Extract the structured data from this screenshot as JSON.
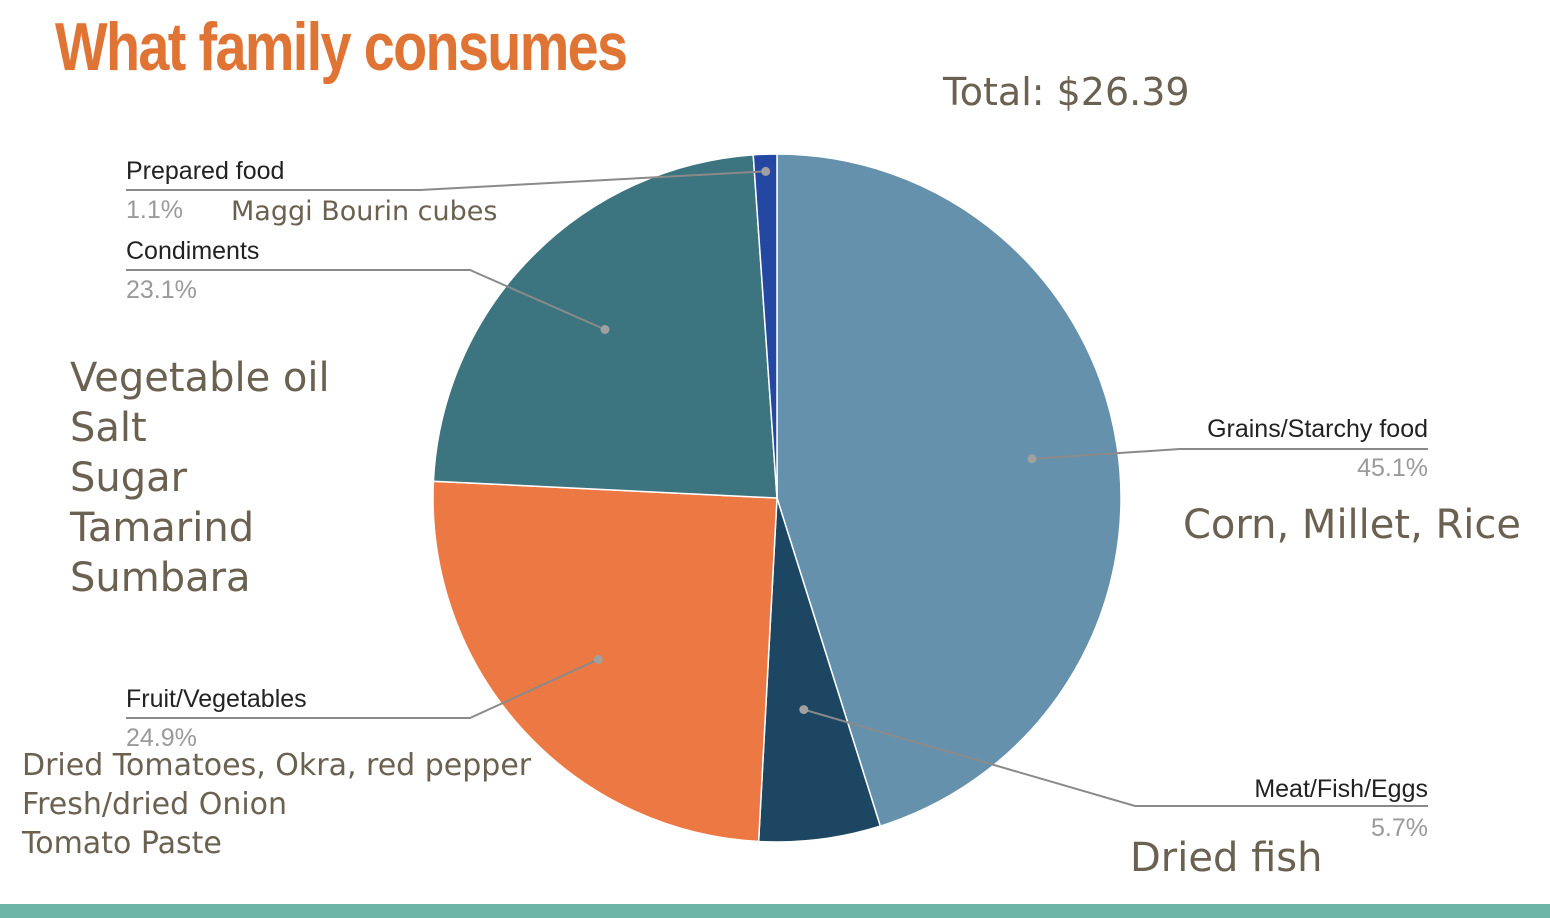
{
  "title": "What family consumes",
  "total": "Total: $26.39",
  "notes": {
    "prepared": "Maggi Bourin cubes",
    "condiments": [
      "Vegetable oil",
      "Salt",
      "Sugar",
      "Tamarind",
      "Sumbara"
    ],
    "grains": "Corn, Millet, Rice",
    "fruit": [
      "Dried Tomatoes, Okra, red pepper",
      "Fresh/dried Onion",
      "Tomato Paste"
    ],
    "meat": "Dried fish"
  },
  "chart_data": {
    "type": "pie",
    "title": "",
    "slices": [
      {
        "label": "Grains/Starchy food",
        "value": 45.1,
        "percent_label": "45.1%",
        "color": "#6591AC"
      },
      {
        "label": "Meat/Fish/Eggs",
        "value": 5.7,
        "percent_label": "5.7%",
        "color": "#1C4661"
      },
      {
        "label": "Fruit/Vegetables",
        "value": 24.9,
        "percent_label": "24.9%",
        "color": "#EC7844"
      },
      {
        "label": "Condiments",
        "value": 23.1,
        "percent_label": "23.1%",
        "color": "#3C7480"
      },
      {
        "label": "Prepared food",
        "value": 1.1,
        "percent_label": "1.1%",
        "color": "#2447A1"
      }
    ],
    "start": "12 o'clock",
    "direction": "clockwise",
    "legend": "none"
  }
}
